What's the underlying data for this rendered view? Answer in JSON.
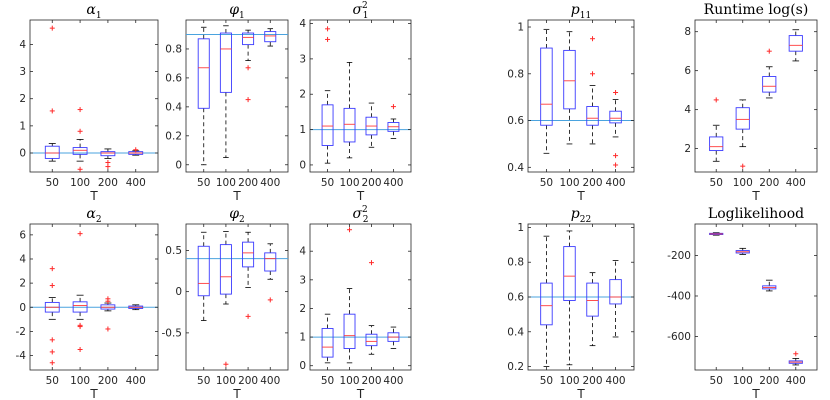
{
  "figure": {
    "x_label": "T",
    "categories": [
      "50",
      "100",
      "200",
      "400"
    ]
  },
  "chart_data": [
    {
      "type": "box",
      "title": "α1",
      "ylim": [
        -0.7,
        4.9
      ],
      "yticks": [
        0,
        1,
        2,
        3,
        4
      ],
      "ref": 0,
      "boxes": [
        {
          "cat": "50",
          "low": -0.3,
          "q1": -0.2,
          "med": 0.0,
          "q3": 0.25,
          "high": 0.35,
          "out": [
            4.6,
            1.55
          ]
        },
        {
          "cat": "100",
          "low": -0.3,
          "q1": -0.05,
          "med": 0.1,
          "q3": 0.2,
          "high": 0.5,
          "out": [
            1.6,
            0.8,
            -0.6
          ]
        },
        {
          "cat": "200",
          "low": -0.2,
          "q1": -0.1,
          "med": 0.0,
          "q3": 0.05,
          "high": 0.15,
          "out": [
            -0.35,
            -0.5
          ]
        },
        {
          "cat": "400",
          "low": -0.08,
          "q1": -0.05,
          "med": 0.0,
          "q3": 0.05,
          "high": 0.08,
          "out": [
            0.12
          ]
        }
      ]
    },
    {
      "type": "box",
      "title": "φ1",
      "ylim": [
        -0.05,
        1.0
      ],
      "yticks": [
        0,
        0.2,
        0.4,
        0.6,
        0.8
      ],
      "ref": 0.9,
      "boxes": [
        {
          "cat": "50",
          "low": 0.0,
          "q1": 0.39,
          "med": 0.67,
          "q3": 0.87,
          "high": 0.95,
          "out": []
        },
        {
          "cat": "100",
          "low": 0.05,
          "q1": 0.5,
          "med": 0.8,
          "q3": 0.91,
          "high": 0.96,
          "out": []
        },
        {
          "cat": "200",
          "low": 0.72,
          "q1": 0.83,
          "med": 0.88,
          "q3": 0.91,
          "high": 0.93,
          "out": [
            0.67,
            0.45
          ]
        },
        {
          "cat": "400",
          "low": 0.82,
          "q1": 0.85,
          "med": 0.89,
          "q3": 0.92,
          "high": 0.94,
          "out": []
        }
      ]
    },
    {
      "type": "box",
      "title": "σ1²",
      "ylim": [
        -0.2,
        4.1
      ],
      "yticks": [
        0,
        1,
        2,
        3,
        4
      ],
      "ref": 1,
      "boxes": [
        {
          "cat": "50",
          "low": 0.05,
          "q1": 0.55,
          "med": 1.1,
          "q3": 1.7,
          "high": 2.1,
          "out": [
            3.85,
            3.55
          ]
        },
        {
          "cat": "100",
          "low": 0.2,
          "q1": 0.65,
          "med": 1.15,
          "q3": 1.6,
          "high": 2.9,
          "out": []
        },
        {
          "cat": "200",
          "low": 0.5,
          "q1": 0.85,
          "med": 1.1,
          "q3": 1.35,
          "high": 1.75,
          "out": []
        },
        {
          "cat": "400",
          "low": 0.75,
          "q1": 0.95,
          "med": 1.08,
          "q3": 1.2,
          "high": 1.3,
          "out": [
            1.65
          ]
        }
      ]
    },
    {
      "type": "box",
      "title": "p11",
      "ylim": [
        0.38,
        1.03
      ],
      "yticks": [
        0.4,
        0.6,
        0.8,
        1
      ],
      "ref": 0.6,
      "boxes": [
        {
          "cat": "50",
          "low": 0.46,
          "q1": 0.58,
          "med": 0.67,
          "q3": 0.91,
          "high": 0.99,
          "out": []
        },
        {
          "cat": "100",
          "low": 0.5,
          "q1": 0.65,
          "med": 0.77,
          "q3": 0.9,
          "high": 0.98,
          "out": []
        },
        {
          "cat": "200",
          "low": 0.5,
          "q1": 0.58,
          "med": 0.61,
          "q3": 0.66,
          "high": 0.75,
          "out": [
            0.95,
            0.8
          ]
        },
        {
          "cat": "400",
          "low": 0.53,
          "q1": 0.59,
          "med": 0.61,
          "q3": 0.64,
          "high": 0.69,
          "out": [
            0.72,
            0.45,
            0.41
          ]
        }
      ]
    },
    {
      "type": "box",
      "title": "Runtime log(s)",
      "ylim": [
        0.8,
        8.6
      ],
      "yticks": [
        2,
        4,
        6,
        8
      ],
      "ref": null,
      "boxes": [
        {
          "cat": "50",
          "low": 1.35,
          "q1": 1.9,
          "med": 2.1,
          "q3": 2.6,
          "high": 3.2,
          "out": [
            4.5
          ]
        },
        {
          "cat": "100",
          "low": 2.1,
          "q1": 3.0,
          "med": 3.5,
          "q3": 4.1,
          "high": 4.5,
          "out": [
            1.1
          ]
        },
        {
          "cat": "200",
          "low": 4.6,
          "q1": 4.9,
          "med": 5.2,
          "q3": 5.7,
          "high": 6.2,
          "out": [
            7.0
          ]
        },
        {
          "cat": "400",
          "low": 6.5,
          "q1": 7.0,
          "med": 7.3,
          "q3": 7.8,
          "high": 8.1,
          "out": []
        }
      ]
    },
    {
      "type": "box",
      "title": "α2",
      "ylim": [
        -5.2,
        6.9
      ],
      "yticks": [
        -4,
        -2,
        0,
        2,
        4,
        6
      ],
      "ref": 0,
      "boxes": [
        {
          "cat": "50",
          "low": -1.0,
          "q1": -0.4,
          "med": 0.0,
          "q3": 0.4,
          "high": 0.8,
          "out": [
            3.2,
            1.8,
            -2.7,
            -3.7,
            -4.6
          ]
        },
        {
          "cat": "100",
          "low": -1.0,
          "q1": -0.4,
          "med": 0.15,
          "q3": 0.45,
          "high": 1.0,
          "out": [
            6.1,
            -1.6,
            -1.5,
            -3.5
          ]
        },
        {
          "cat": "200",
          "low": -0.3,
          "q1": -0.15,
          "med": 0.0,
          "q3": 0.2,
          "high": 0.35,
          "out": [
            0.7,
            0.5,
            -1.8
          ]
        },
        {
          "cat": "400",
          "low": -0.2,
          "q1": -0.1,
          "med": 0.0,
          "q3": 0.1,
          "high": 0.2,
          "out": []
        }
      ]
    },
    {
      "type": "box",
      "title": "φ2",
      "ylim": [
        -0.95,
        0.82
      ],
      "yticks": [
        -0.5,
        0,
        0.5
      ],
      "ref": 0.4,
      "boxes": [
        {
          "cat": "50",
          "low": -0.35,
          "q1": -0.05,
          "med": 0.1,
          "q3": 0.55,
          "high": 0.72,
          "out": []
        },
        {
          "cat": "100",
          "low": -0.15,
          "q1": -0.03,
          "med": 0.18,
          "q3": 0.57,
          "high": 0.73,
          "out": [
            -0.88
          ]
        },
        {
          "cat": "200",
          "low": 0.05,
          "q1": 0.3,
          "med": 0.47,
          "q3": 0.6,
          "high": 0.72,
          "out": [
            -0.3
          ]
        },
        {
          "cat": "400",
          "low": 0.15,
          "q1": 0.25,
          "med": 0.4,
          "q3": 0.47,
          "high": 0.58,
          "out": [
            -0.1
          ]
        }
      ]
    },
    {
      "type": "box",
      "title": "σ2²",
      "ylim": [
        -0.15,
        4.95
      ],
      "yticks": [
        0,
        1,
        2,
        3,
        4
      ],
      "ref": 1,
      "boxes": [
        {
          "cat": "50",
          "low": 0.1,
          "q1": 0.3,
          "med": 0.65,
          "q3": 1.3,
          "high": 1.8,
          "out": []
        },
        {
          "cat": "100",
          "low": 0.1,
          "q1": 0.6,
          "med": 1.05,
          "q3": 1.8,
          "high": 2.7,
          "out": [
            4.75
          ]
        },
        {
          "cat": "200",
          "low": 0.4,
          "q1": 0.7,
          "med": 0.85,
          "q3": 1.1,
          "high": 1.4,
          "out": [
            3.6
          ]
        },
        {
          "cat": "400",
          "low": 0.6,
          "q1": 0.85,
          "med": 1.0,
          "q3": 1.15,
          "high": 1.35,
          "out": []
        }
      ]
    },
    {
      "type": "box",
      "title": "p22",
      "ylim": [
        0.18,
        1.02
      ],
      "yticks": [
        0.2,
        0.4,
        0.6,
        0.8,
        1
      ],
      "ref": 0.6,
      "boxes": [
        {
          "cat": "50",
          "low": 0.2,
          "q1": 0.44,
          "med": 0.55,
          "q3": 0.68,
          "high": 0.95,
          "out": []
        },
        {
          "cat": "100",
          "low": 0.21,
          "q1": 0.58,
          "med": 0.72,
          "q3": 0.89,
          "high": 0.98,
          "out": []
        },
        {
          "cat": "200",
          "low": 0.32,
          "q1": 0.49,
          "med": 0.58,
          "q3": 0.68,
          "high": 0.74,
          "out": []
        },
        {
          "cat": "400",
          "low": 0.37,
          "q1": 0.56,
          "med": 0.6,
          "q3": 0.7,
          "high": 0.81,
          "out": []
        }
      ]
    },
    {
      "type": "box",
      "title": "Loglikelihood",
      "ylim": [
        -765,
        -45
      ],
      "yticks": [
        -600,
        -400,
        -200
      ],
      "ref": null,
      "boxes": [
        {
          "cat": "50",
          "low": -100,
          "q1": -97,
          "med": -94,
          "q3": -91,
          "high": -88,
          "out": []
        },
        {
          "cat": "100",
          "low": -195,
          "q1": -188,
          "med": -182,
          "q3": -176,
          "high": -165,
          "out": []
        },
        {
          "cat": "200",
          "low": -375,
          "q1": -365,
          "med": -358,
          "q3": -350,
          "high": -322,
          "out": []
        },
        {
          "cat": "400",
          "low": -740,
          "q1": -732,
          "med": -726,
          "q3": -720,
          "high": -708,
          "out": [
            -685
          ]
        }
      ]
    }
  ]
}
